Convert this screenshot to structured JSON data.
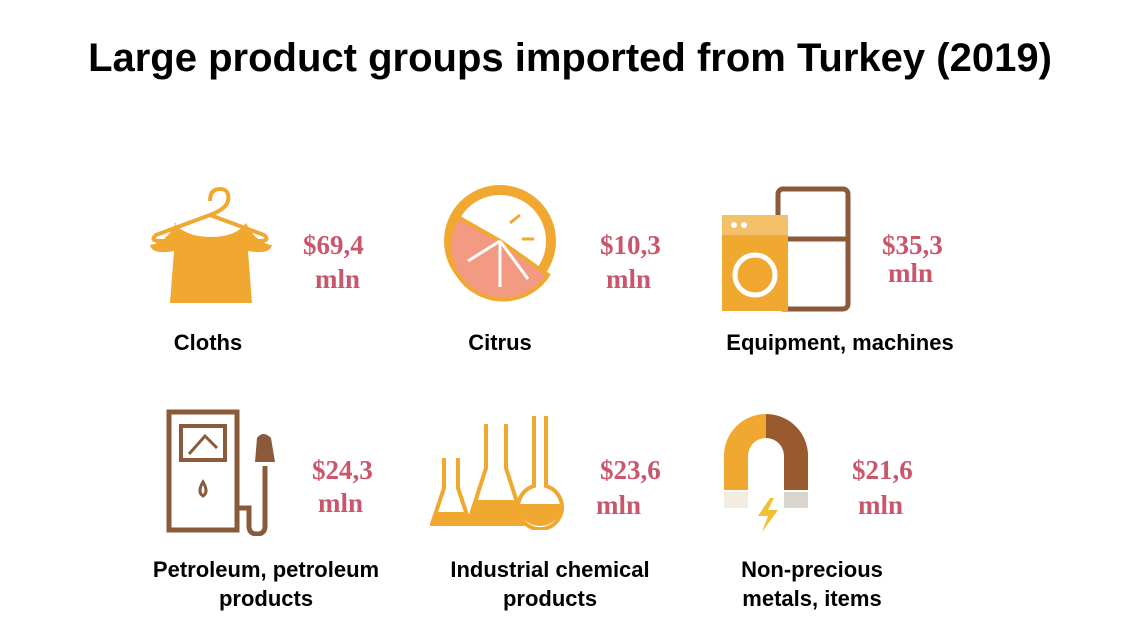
{
  "title": "Large product groups imported from Turkey (2019)",
  "items": [
    {
      "label": "Cloths",
      "value": "$69,4",
      "unit": "mln"
    },
    {
      "label": "Citrus",
      "value": "$10,3",
      "unit": "mln"
    },
    {
      "label": "Equipment, machines",
      "value": "$35,3",
      "unit": "mln"
    },
    {
      "label": "Petroleum, petroleum products",
      "value": "$24,3",
      "unit": "mln"
    },
    {
      "label": "Industrial chemical products",
      "value": "$23,6",
      "unit": "mln"
    },
    {
      "label": "Non-precious metals, items",
      "value": "$21,6",
      "unit": "mln"
    }
  ]
}
